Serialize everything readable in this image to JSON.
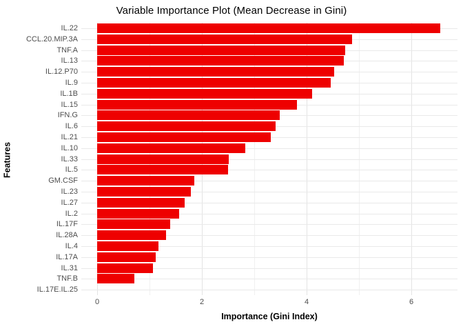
{
  "title": "Variable Importance Plot (Mean Decrease in Gini)",
  "colors": {
    "bar": "#ee0000",
    "grid_major": "#e3e3e3",
    "grid_minor": "#f0f0f0",
    "horizontal_grid": "#e9e9e9",
    "tick_text": "#4d4d4d",
    "title_text": "#000000",
    "background": "#ffffff"
  },
  "chart_data": {
    "type": "bar",
    "orientation": "horizontal",
    "title": "Variable Importance Plot (Mean Decrease in Gini)",
    "xlabel": "Importance (Gini Index)",
    "ylabel": "Features",
    "categories": [
      "IL.22",
      "CCL.20.MIP.3A",
      "TNF.A",
      "IL.13",
      "IL.12.P70",
      "IL.9",
      "IL.1B",
      "IL.15",
      "IFN.G",
      "IL.6",
      "IL.21",
      "IL.10",
      "IL.33",
      "IL.5",
      "GM.CSF",
      "IL.23",
      "IL.27",
      "IL.2",
      "IL.17F",
      "IL.28A",
      "IL.4",
      "IL.17A",
      "IL.31",
      "TNF.B",
      "IL.17E.IL.25"
    ],
    "values": [
      6.55,
      4.87,
      4.73,
      4.71,
      4.52,
      4.46,
      4.1,
      3.82,
      3.49,
      3.41,
      3.32,
      2.83,
      2.51,
      2.5,
      1.86,
      1.79,
      1.67,
      1.56,
      1.4,
      1.32,
      1.17,
      1.12,
      1.07,
      0.71,
      0.0
    ],
    "xlim": [
      -0.33,
      6.9
    ],
    "x_major_ticks": [
      0,
      2,
      4,
      6
    ],
    "x_minor_ticks": [
      1,
      3,
      5
    ],
    "x_tick_labels": [
      "0",
      "2",
      "4",
      "6"
    ],
    "grid": true,
    "legend_position": "none",
    "sorted": "descending"
  }
}
